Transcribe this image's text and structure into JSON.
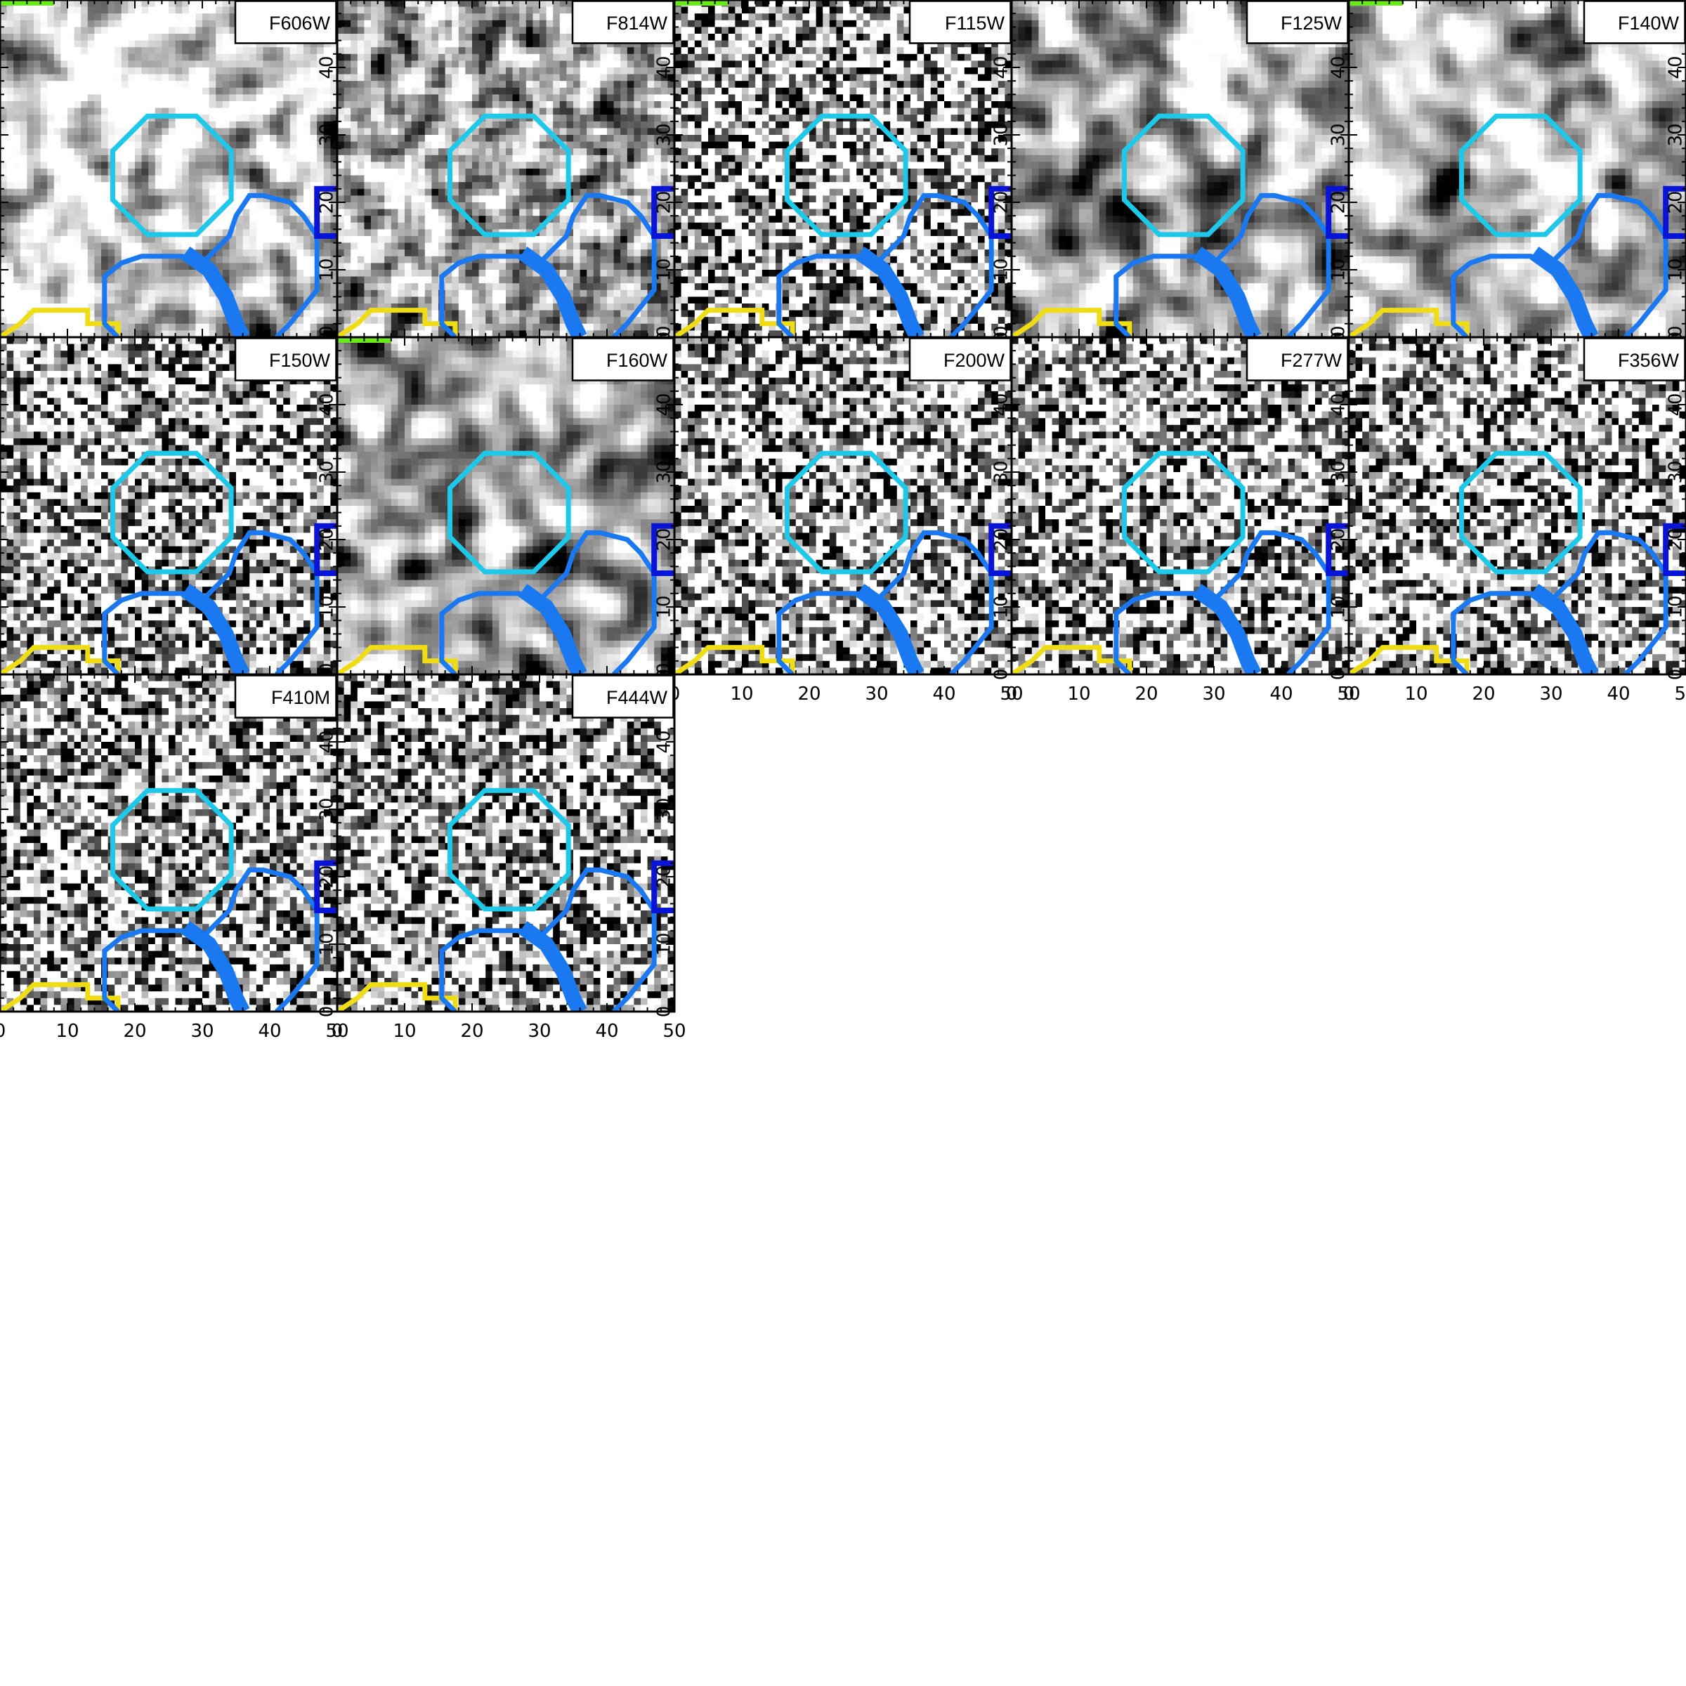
{
  "figure": {
    "panels": [
      {
        "band": "F606W",
        "seed": 11,
        "smooth": 2
      },
      {
        "band": "F814W",
        "seed": 23,
        "smooth": 1
      },
      {
        "band": "F115W",
        "seed": 37,
        "smooth": 0
      },
      {
        "band": "F125W",
        "seed": 41,
        "smooth": 3
      },
      {
        "band": "F140W",
        "seed": 53,
        "smooth": 3
      },
      {
        "band": "F150W",
        "seed": 67,
        "smooth": 0
      },
      {
        "band": "F160W",
        "seed": 71,
        "smooth": 3
      },
      {
        "band": "F200W",
        "seed": 83,
        "smooth": 0
      },
      {
        "band": "F277W",
        "seed": 97,
        "smooth": 0
      },
      {
        "band": "F356W",
        "seed": 101,
        "smooth": 0
      },
      {
        "band": "F410M",
        "seed": 113,
        "smooth": 0
      },
      {
        "band": "F444W",
        "seed": 127,
        "smooth": 0
      }
    ],
    "x_ticks": [
      "0",
      "10",
      "20",
      "30",
      "40",
      "50"
    ],
    "y_ticks": [
      "0",
      "10",
      "20",
      "30",
      "40",
      "50"
    ],
    "axis_range": [
      0,
      50
    ],
    "colormap": "gray_r",
    "region_colors": {
      "target": "#1ec8e8",
      "neighbor": "#1a78f0",
      "edge": "#0a14d8",
      "low": "#f0dc14",
      "top": "#6ae81e"
    }
  }
}
